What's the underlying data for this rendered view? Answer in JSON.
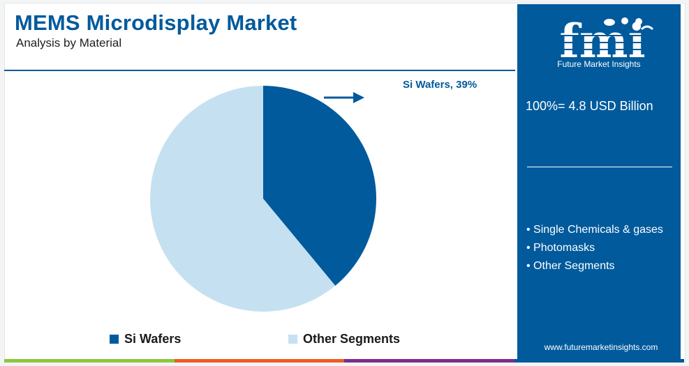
{
  "header": {
    "title": "MEMS Microdisplay Market",
    "subtitle": "Analysis by Material"
  },
  "chart_data": {
    "type": "pie",
    "title": "MEMS Microdisplay Market",
    "subtitle": "Analysis by Material",
    "slices": [
      {
        "label": "Si Wafers",
        "value": 39,
        "color": "#005a9c"
      },
      {
        "label": "Other Segments",
        "value": 61,
        "color": "#c5e1f1"
      }
    ],
    "callout": "Si Wafers, 39%",
    "legend": [
      "Si Wafers",
      "Other Segments"
    ],
    "legend_position": "bottom"
  },
  "side_panel": {
    "logo_text": "fmi",
    "logo_tagline": "Future Market Insights",
    "total": "100%= 4.8 USD Billion",
    "segments": [
      "• Single Chemicals & gases",
      "• Photomasks",
      "• Other Segments"
    ],
    "website": "www.futuremarketinsights.com"
  },
  "colors": {
    "brand": "#005a9c",
    "light": "#c5e1f1",
    "bar": [
      "#8dc63f",
      "#f15a24",
      "#7b2d8e",
      "#005a9c"
    ]
  },
  "icons": [
    "arrow-right-icon",
    "fmi-logo"
  ]
}
